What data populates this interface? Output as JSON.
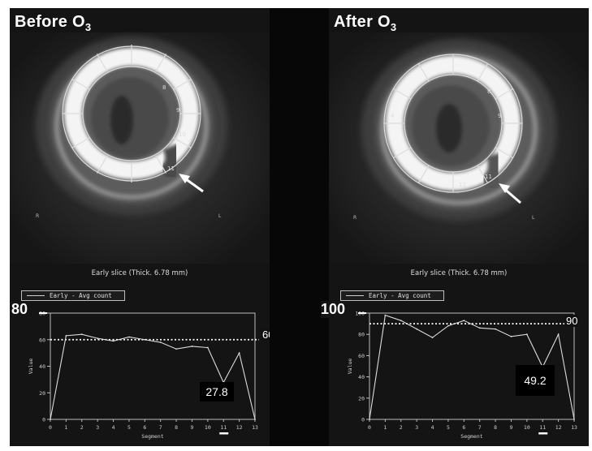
{
  "left": {
    "title": "Before O",
    "title_sub": "3",
    "side_left": "R",
    "side_right": "L",
    "segment_labels": [
      "8",
      "9",
      "10",
      "11"
    ],
    "slice_label": "Early slice (Thick. 6.78 mm)",
    "legend": "Early - Avg count",
    "ymax_label": "80",
    "ref_label": "60",
    "value_label": "27.8",
    "chart": {
      "ymax": 80,
      "yticks": [
        "0",
        "20",
        "40",
        "60",
        "80"
      ],
      "ref_value": 60,
      "xlabel": "Segment",
      "ylabel": "Value",
      "x": [
        0,
        1,
        2,
        3,
        4,
        5,
        6,
        7,
        8,
        9,
        10,
        11,
        12,
        13
      ],
      "values": [
        0,
        63,
        64,
        61,
        59,
        62,
        60,
        58,
        53,
        55,
        54,
        27.8,
        50,
        0
      ],
      "highlight_segment": 11
    }
  },
  "right": {
    "title": "After O",
    "title_sub": "3",
    "side_left": "R",
    "side_right": "L",
    "segment_labels": [
      "4",
      "8",
      "9",
      "11",
      "12"
    ],
    "slice_label": "Early slice (Thick. 6.78 mm)",
    "legend": "Early - Avg count",
    "ymax_label": "100",
    "ref_label": "90",
    "value_label": "49.2",
    "chart": {
      "ymax": 100,
      "yticks": [
        "0",
        "20",
        "40",
        "60",
        "80",
        "100"
      ],
      "ref_value": 90,
      "xlabel": "Segment",
      "ylabel": "Value",
      "x": [
        0,
        1,
        2,
        3,
        4,
        5,
        6,
        7,
        8,
        9,
        10,
        11,
        12,
        13
      ],
      "values": [
        0,
        98,
        93,
        85,
        77,
        88,
        93,
        86,
        85,
        78,
        80,
        49.2,
        80,
        0
      ],
      "highlight_segment": 11
    }
  }
}
